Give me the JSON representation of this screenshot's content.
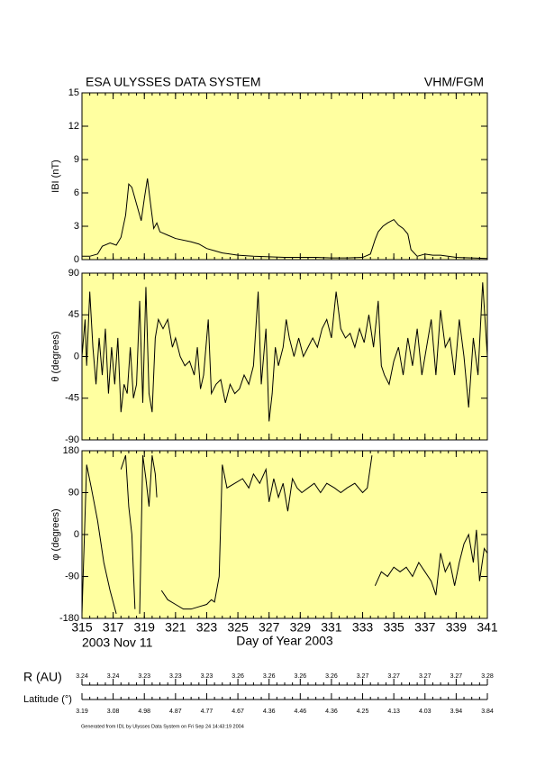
{
  "header": {
    "title": "ESA ULYSSES DATA SYSTEM",
    "instrument": "VHM/FGM"
  },
  "chart_data": [
    {
      "type": "line",
      "ylabel": "IBI (nT)",
      "color": "#000000",
      "xlim": [
        315,
        341
      ],
      "xticks": [
        315,
        317,
        319,
        321,
        323,
        325,
        327,
        329,
        331,
        333,
        335,
        337,
        339,
        341
      ],
      "ylim": [
        0,
        15
      ],
      "yticks": [
        0,
        3,
        6,
        9,
        12,
        15
      ],
      "x": [
        315,
        315.5,
        316,
        316.3,
        316.8,
        317.2,
        317.5,
        317.8,
        318,
        318.2,
        318.5,
        318.8,
        319,
        319.2,
        319.4,
        319.6,
        319.8,
        320,
        320.5,
        321,
        322,
        322.5,
        323,
        323.5,
        324,
        325,
        326,
        327,
        328,
        329,
        330,
        331,
        332,
        333,
        333.5,
        333.8,
        334,
        334.3,
        334.6,
        335,
        335.3,
        335.6,
        335.9,
        336.1,
        336.5,
        337,
        337.5,
        338,
        339,
        340,
        341
      ],
      "values": [
        0.3,
        0.3,
        0.5,
        1.2,
        1.5,
        1.3,
        2.0,
        4.0,
        6.8,
        6.5,
        5.0,
        3.5,
        5.5,
        7.3,
        5.0,
        2.8,
        3.3,
        2.5,
        2.2,
        1.9,
        1.6,
        1.4,
        1.0,
        0.8,
        0.6,
        0.4,
        0.3,
        0.25,
        0.2,
        0.2,
        0.2,
        0.15,
        0.15,
        0.2,
        0.5,
        1.8,
        2.5,
        3.0,
        3.3,
        3.6,
        3.1,
        2.8,
        2.3,
        0.9,
        0.3,
        0.5,
        0.4,
        0.4,
        0.2,
        0.15,
        0.1
      ]
    },
    {
      "type": "line",
      "ylabel": "θ (degrees)",
      "color": "#000000",
      "xlim": [
        315,
        341
      ],
      "xticks": [
        315,
        317,
        319,
        321,
        323,
        325,
        327,
        329,
        331,
        333,
        335,
        337,
        339,
        341
      ],
      "ylim": [
        -90,
        90
      ],
      "yticks": [
        -90,
        -45,
        0,
        45,
        90
      ],
      "x": [
        315.0,
        315.2,
        315.3,
        315.5,
        315.7,
        315.9,
        316.1,
        316.3,
        316.5,
        316.7,
        316.9,
        317.1,
        317.3,
        317.5,
        317.7,
        317.9,
        318.1,
        318.3,
        318.5,
        318.7,
        318.9,
        319.1,
        319.3,
        319.5,
        319.7,
        319.9,
        320.2,
        320.5,
        320.8,
        321.0,
        321.3,
        321.6,
        321.9,
        322.2,
        322.4,
        322.6,
        322.8,
        323.1,
        323.3,
        323.6,
        323.9,
        324.2,
        324.5,
        324.8,
        325.1,
        325.4,
        325.7,
        326.0,
        326.3,
        326.5,
        326.8,
        327.0,
        327.2,
        327.4,
        327.6,
        327.9,
        328.1,
        328.3,
        328.6,
        328.9,
        329.2,
        329.5,
        329.8,
        330.1,
        330.4,
        330.7,
        331.0,
        331.3,
        331.6,
        331.9,
        332.2,
        332.5,
        332.8,
        333.1,
        333.4,
        333.7,
        334.0,
        334.2,
        334.4,
        334.7,
        335.0,
        335.3,
        335.6,
        335.9,
        336.2,
        336.5,
        336.8,
        337.1,
        337.4,
        337.7,
        338.0,
        338.3,
        338.6,
        338.9,
        339.2,
        339.5,
        339.8,
        340.1,
        340.4,
        340.7,
        341
      ],
      "values": [
        0,
        40,
        -10,
        70,
        10,
        -30,
        20,
        -20,
        30,
        -40,
        10,
        -30,
        20,
        -60,
        -30,
        -40,
        10,
        -45,
        -30,
        60,
        -50,
        75,
        -40,
        -60,
        20,
        40,
        30,
        40,
        10,
        20,
        0,
        -10,
        -5,
        -20,
        10,
        -35,
        -20,
        40,
        -40,
        -30,
        -25,
        -50,
        -30,
        -40,
        -35,
        -20,
        -30,
        -10,
        70,
        -30,
        30,
        -70,
        -40,
        10,
        -10,
        10,
        40,
        20,
        0,
        20,
        0,
        10,
        20,
        10,
        30,
        40,
        20,
        70,
        30,
        20,
        25,
        10,
        30,
        15,
        45,
        10,
        60,
        -10,
        -20,
        -30,
        -5,
        10,
        -20,
        20,
        -10,
        30,
        -20,
        10,
        40,
        -20,
        50,
        10,
        20,
        -20,
        40,
        0,
        -55,
        20,
        -20,
        80,
        0
      ]
    },
    {
      "type": "line",
      "ylabel": "φ (degrees)",
      "color": "#000000",
      "xlabel": "Day of Year 2003",
      "start_date": "2003 Nov 11",
      "xlim": [
        315,
        341
      ],
      "xticks": [
        315,
        317,
        319,
        321,
        323,
        325,
        327,
        329,
        331,
        333,
        335,
        337,
        339,
        341
      ],
      "ylim": [
        -180,
        180
      ],
      "yticks": [
        -180,
        -90,
        0,
        90,
        180
      ],
      "x": [
        315,
        315.3,
        315.6,
        316.0,
        316.4,
        316.8,
        317.2,
        317.35,
        317.5,
        317.8,
        318.0,
        318.2,
        318.4,
        318.55,
        318.7,
        318.9,
        319.1,
        319.3,
        319.5,
        319.7,
        319.8,
        319.95,
        320.1,
        320.5,
        321,
        321.5,
        322,
        322.5,
        323,
        323.3,
        323.5,
        323.8,
        324,
        324.3,
        324.8,
        325.3,
        325.7,
        326,
        326.4,
        326.8,
        327,
        327.3,
        327.6,
        327.9,
        328.2,
        328.5,
        328.8,
        329.1,
        329.5,
        329.9,
        330.3,
        330.7,
        331.2,
        331.6,
        332,
        332.5,
        333,
        333.3,
        333.6,
        333.7,
        333.8,
        334.2,
        334.6,
        335,
        335.4,
        335.8,
        336.2,
        336.6,
        337,
        337.4,
        337.7,
        338,
        338.3,
        338.6,
        338.9,
        339.2,
        339.5,
        339.8,
        340.1,
        340.3,
        340.5,
        340.8,
        341
      ],
      "values": [
        -170,
        150,
        100,
        30,
        -60,
        -120,
        -170,
        null,
        140,
        170,
        60,
        0,
        -160,
        null,
        -170,
        170,
        120,
        60,
        170,
        130,
        80,
        null,
        -120,
        -140,
        -150,
        -160,
        -160,
        -155,
        -150,
        -140,
        -145,
        -90,
        150,
        100,
        110,
        120,
        100,
        130,
        110,
        140,
        70,
        120,
        80,
        110,
        50,
        120,
        100,
        90,
        100,
        110,
        90,
        110,
        100,
        90,
        100,
        110,
        90,
        100,
        170,
        null,
        -110,
        -80,
        -90,
        -70,
        -80,
        -70,
        -90,
        -60,
        -80,
        -100,
        -130,
        -40,
        -80,
        -60,
        -110,
        -60,
        -20,
        0,
        -60,
        10,
        -100,
        -30,
        -40
      ]
    }
  ],
  "orbit": {
    "r_label": "R (AU)",
    "lat_label": "Latitude (°)",
    "r_values": [
      "3.24",
      "3.24",
      "3.23",
      "3.23",
      "3.23",
      "3.26",
      "3.26",
      "3.26",
      "3.26",
      "3.27",
      "3.27",
      "3.27",
      "3.27",
      "3.28"
    ],
    "lat_values": [
      "3.19",
      "3.08",
      "4.98",
      "4.87",
      "4.77",
      "4.67",
      "4.36",
      "4.46",
      "4.36",
      "4.25",
      "4.13",
      "4.03",
      "3.94",
      "3.84"
    ]
  },
  "footer": "Generated from IDL by Ulysses Data System on Fri Sep 24 14:43:19 2004"
}
